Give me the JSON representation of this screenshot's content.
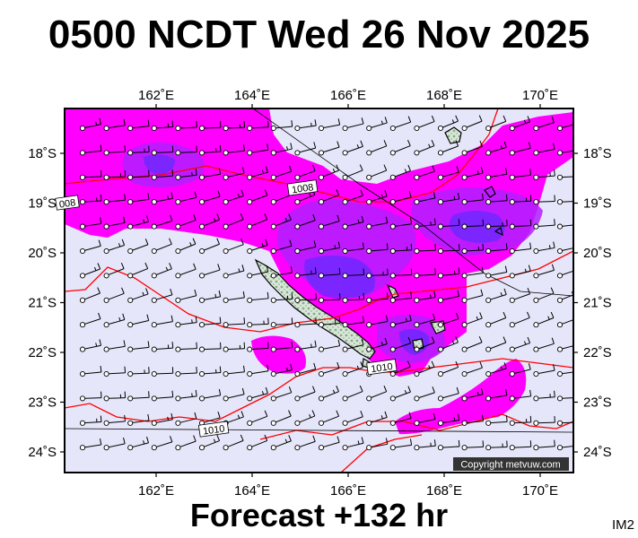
{
  "title": "0500 NCDT Wed 26 Nov 2025",
  "footer": "Forecast +132 hr",
  "tag": "IM2",
  "copyright": "Copyright metvuw.com",
  "lon_ticks": [
    {
      "value": 162,
      "label": "162˚E"
    },
    {
      "value": 164,
      "label": "164˚E"
    },
    {
      "value": 166,
      "label": "166˚E"
    },
    {
      "value": 168,
      "label": "168˚E"
    },
    {
      "value": 170,
      "label": "170˚E"
    }
  ],
  "lat_ticks": [
    {
      "value": -18,
      "label": "18˚S"
    },
    {
      "value": -19,
      "label": "19˚S"
    },
    {
      "value": -20,
      "label": "20˚S"
    },
    {
      "value": -21,
      "label": "21˚S"
    },
    {
      "value": -22,
      "label": "22˚S"
    },
    {
      "value": -23,
      "label": "23˚S"
    },
    {
      "value": -24,
      "label": "24˚S"
    }
  ],
  "isobar_labels": [
    {
      "text": "1008",
      "lon": 165.05,
      "lat": -18.7
    },
    {
      "text": "008",
      "lon": 160.15,
      "lat": -19.0
    },
    {
      "text": "1010",
      "lon": 166.7,
      "lat": -22.3
    },
    {
      "text": "1010",
      "lon": 163.2,
      "lat": -23.55
    }
  ],
  "colors": {
    "background": "#e6e6fa",
    "rain_light": "#ff00ff",
    "rain_medium": "#b31eff",
    "rain_heavy": "#8c1eff",
    "rain_vheavy": "#6020ff",
    "isobar": "#ff0000",
    "land": "#c8dcc8"
  }
}
